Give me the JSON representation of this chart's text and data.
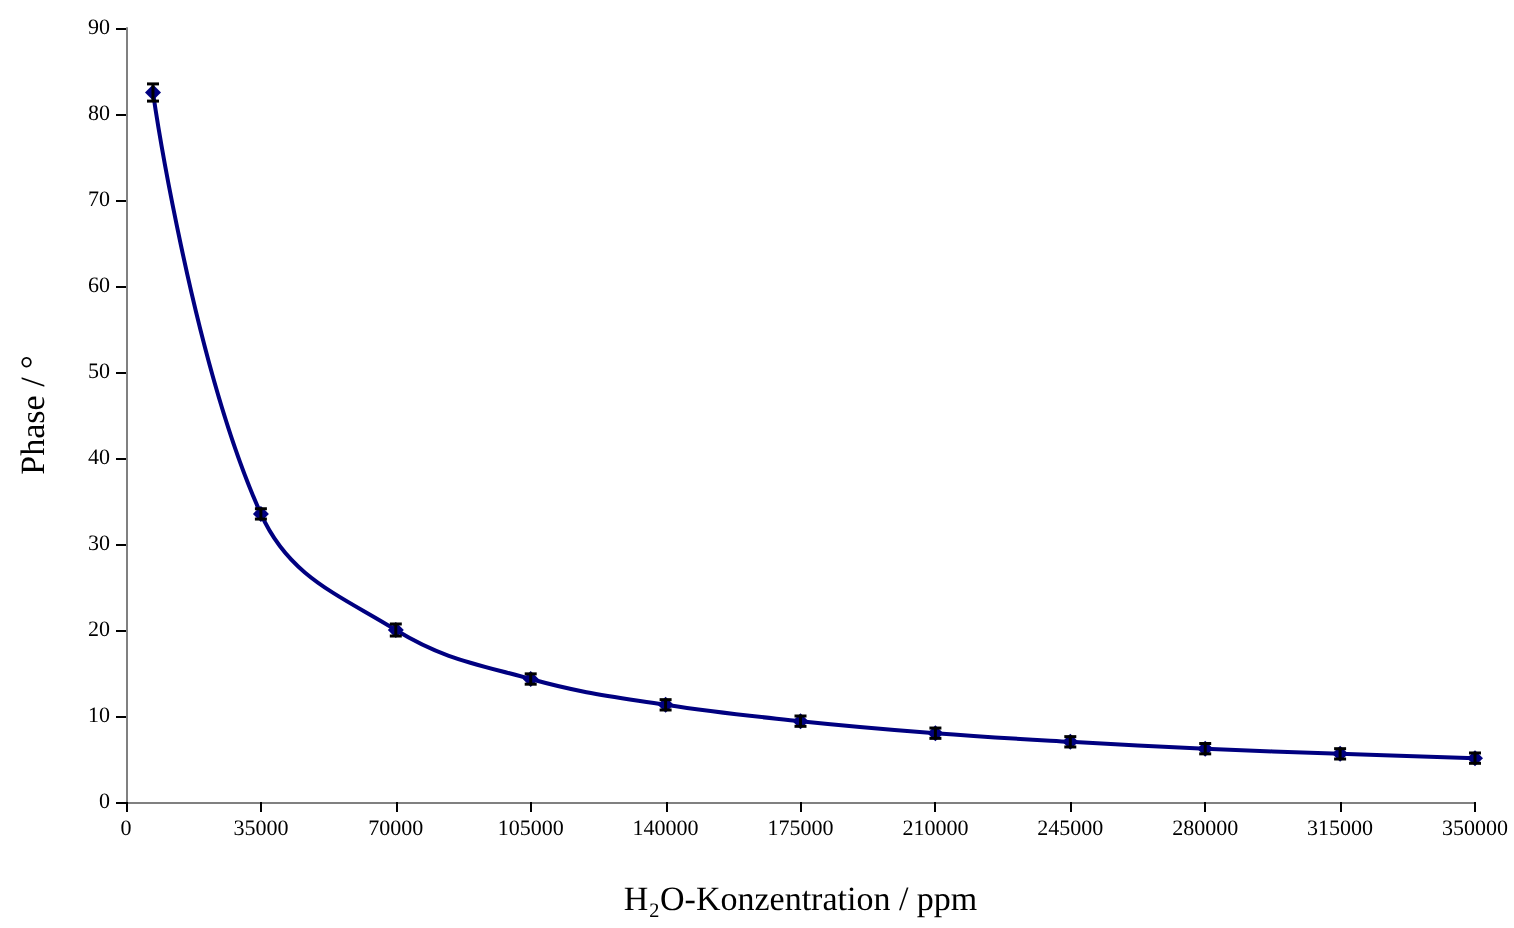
{
  "chart_data": {
    "type": "line",
    "xlabel": "H₂O-Konzentration / ppm",
    "ylabel": "Phase / °",
    "x": [
      7000,
      35000,
      70000,
      105000,
      140000,
      175000,
      210000,
      245000,
      280000,
      315000,
      350000
    ],
    "series": [
      {
        "color": "#000080",
        "values": [
          82.5,
          33.5,
          20,
          14.3,
          11.3,
          9.4,
          8,
          7,
          6.2,
          5.6,
          5.1
        ],
        "errors": [
          1,
          0.6,
          0.7,
          0.6,
          0.6,
          0.6,
          0.6,
          0.6,
          0.6,
          0.6,
          0.6
        ]
      }
    ],
    "xlim": [
      0,
      350000
    ],
    "xticks": [
      0,
      35000,
      70000,
      105000,
      140000,
      175000,
      210000,
      245000,
      280000,
      315000,
      350000
    ],
    "ylim": [
      0,
      90
    ],
    "yticks": [
      0,
      10,
      20,
      30,
      40,
      50,
      60,
      70,
      80,
      90
    ],
    "grid": false,
    "marker": "diamond",
    "line_style": "solid"
  }
}
